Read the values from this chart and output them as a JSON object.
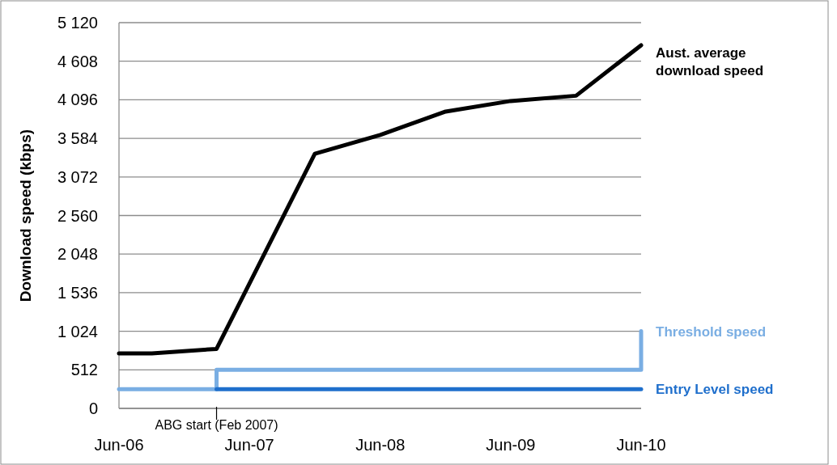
{
  "chart_data": {
    "type": "line",
    "ylabel": "Download speed (kbps)",
    "xlim": [
      "2006-06",
      "2010-06"
    ],
    "xticks": [
      {
        "value": "2006-06",
        "label": "Jun-06"
      },
      {
        "value": "2007-06",
        "label": "Jun-07"
      },
      {
        "value": "2008-06",
        "label": "Jun-08"
      },
      {
        "value": "2009-06",
        "label": "Jun-09"
      },
      {
        "value": "2010-06",
        "label": "Jun-10"
      }
    ],
    "ylim": [
      0,
      5120
    ],
    "yticks": [
      0,
      512,
      {
        "value": 1024,
        "label": "1 024"
      },
      {
        "value": 1536,
        "label": "1 536"
      },
      {
        "value": 2048,
        "label": "2 048"
      },
      {
        "value": 2560,
        "label": "2 560"
      },
      {
        "value": 3072,
        "label": "3 072"
      },
      {
        "value": 3584,
        "label": "3 584"
      },
      {
        "value": 4096,
        "label": "4 096"
      },
      {
        "value": 4608,
        "label": "4 608"
      },
      {
        "value": 5120,
        "label": "5 120"
      }
    ],
    "grid": "y",
    "ref_lines": [
      {
        "axis": "x",
        "value": "2007-03",
        "label": "ABG start (Feb 2007)"
      }
    ],
    "series": [
      {
        "name": "Aust. average download speed",
        "color": "#000000",
        "x": [
          "2006-06",
          "2006-09",
          "2007-03",
          "2007-12",
          "2008-06",
          "2008-12",
          "2009-06",
          "2009-12",
          "2010-06"
        ],
        "values": [
          730,
          730,
          790,
          3380,
          3630,
          3940,
          4080,
          4150,
          4820
        ]
      },
      {
        "name": "Threshold speed",
        "type": "step",
        "color": "#7aaee3",
        "x": [
          "2006-06",
          "2007-03",
          "2010-06"
        ],
        "values": [
          256,
          512,
          1024
        ]
      },
      {
        "name": "Entry Level speed",
        "color": "#1f6fcc",
        "x": [
          "2007-03",
          "2010-06"
        ],
        "values": [
          256,
          256
        ]
      }
    ]
  }
}
